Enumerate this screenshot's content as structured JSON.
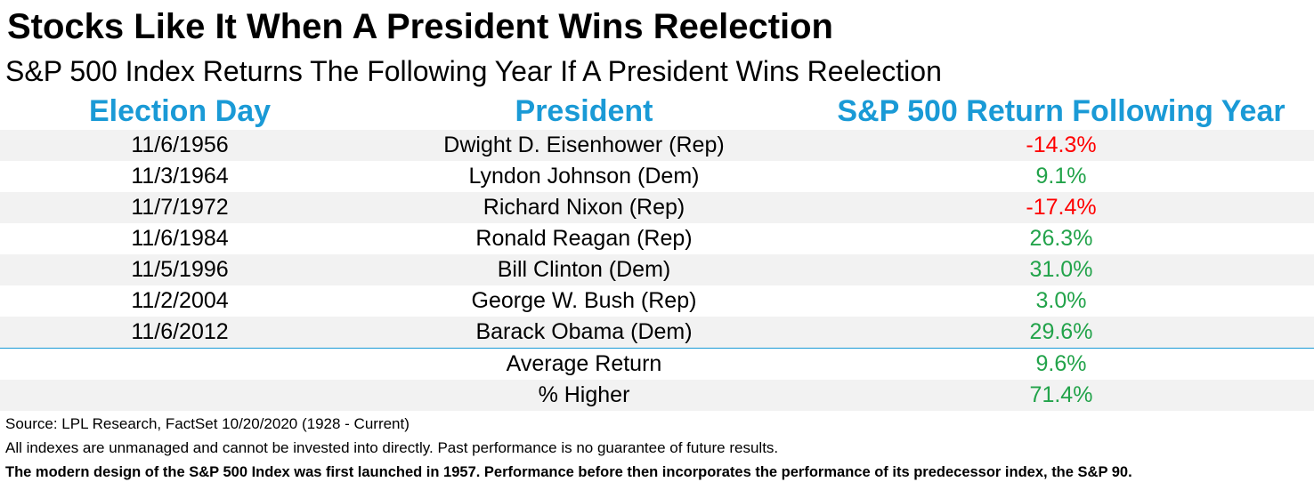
{
  "title": "Stocks Like It When A President Wins Reelection",
  "subtitle": "S&P 500 Index Returns The Following Year If A President Wins Reelection",
  "colors": {
    "header": "#1a9ad6",
    "negative": "#ff0000",
    "positive": "#22a34a",
    "row_shade": "#f2f2f2"
  },
  "headers": {
    "election_day": "Election Day",
    "president": "President",
    "return": "S&P 500 Return Following Year"
  },
  "rows": [
    {
      "date": "11/6/1956",
      "president": "Dwight D. Eisenhower (Rep)",
      "return": "-14.3%",
      "sign": "neg"
    },
    {
      "date": "11/3/1964",
      "president": "Lyndon Johnson (Dem)",
      "return": "9.1%",
      "sign": "pos"
    },
    {
      "date": "11/7/1972",
      "president": "Richard Nixon (Rep)",
      "return": "-17.4%",
      "sign": "neg"
    },
    {
      "date": "11/6/1984",
      "president": "Ronald Reagan (Rep)",
      "return": "26.3%",
      "sign": "pos"
    },
    {
      "date": "11/5/1996",
      "president": "Bill Clinton (Dem)",
      "return": "31.0%",
      "sign": "pos"
    },
    {
      "date": "11/2/2004",
      "president": "George W. Bush (Rep)",
      "return": "3.0%",
      "sign": "pos"
    },
    {
      "date": "11/6/2012",
      "president": "Barack Obama (Dem)",
      "return": "29.6%",
      "sign": "pos"
    }
  ],
  "summary": [
    {
      "label": "Average Return",
      "value": "9.6%"
    },
    {
      "label": "% Higher",
      "value": "71.4%"
    }
  ],
  "notes": {
    "source": "Source: LPL Research, FactSet 10/20/2020 (1928 - Current)",
    "disclaimer": "All indexes are unmanaged and cannot be invested into directly. Past performance is no guarantee of future results.",
    "methodology": "The modern design of the S&P 500 Index was first launched in 1957. Performance before then incorporates the performance of its  predecessor index, the S&P 90."
  }
}
